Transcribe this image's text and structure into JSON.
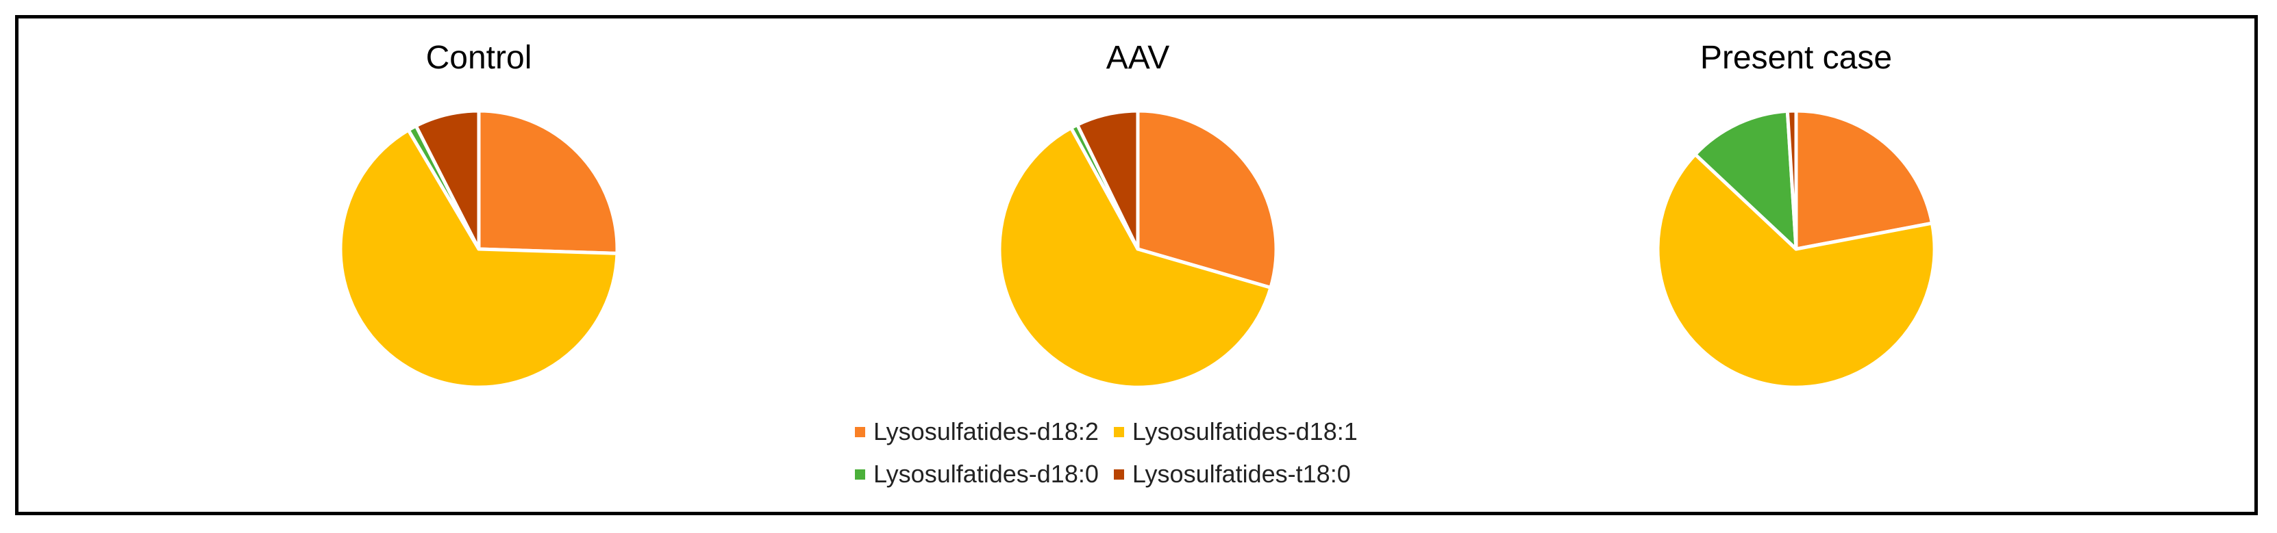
{
  "colors": {
    "d18_2": "#F98025",
    "d18_1": "#FFC000",
    "d18_0": "#4BB03A",
    "t18_0": "#B84300"
  },
  "chart_data": [
    {
      "type": "pie",
      "title": "Control",
      "slices": [
        {
          "label": "Lysosulfatides-d18:2",
          "value": 25.5
        },
        {
          "label": "Lysosulfatides-d18:1",
          "value": 66.0
        },
        {
          "label": "Lysosulfatides-d18:0",
          "value": 1.0
        },
        {
          "label": "Lysosulfatides-t18:0",
          "value": 7.5
        }
      ]
    },
    {
      "type": "pie",
      "title": "AAV",
      "slices": [
        {
          "label": "Lysosulfatides-d18:2",
          "value": 29.5
        },
        {
          "label": "Lysosulfatides-d18:1",
          "value": 62.5
        },
        {
          "label": "Lysosulfatides-d18:0",
          "value": 0.8
        },
        {
          "label": "Lysosulfatides-t18:0",
          "value": 7.2
        }
      ]
    },
    {
      "type": "pie",
      "title": "Present case",
      "slices": [
        {
          "label": "Lysosulfatides-d18:2",
          "value": 22.0
        },
        {
          "label": "Lysosulfatides-d18:1",
          "value": 65.0
        },
        {
          "label": "Lysosulfatides-d18:0",
          "value": 12.0
        },
        {
          "label": "Lysosulfatides-t18:0",
          "value": 1.0
        }
      ]
    }
  ],
  "legend": {
    "placement": "bottom-center",
    "items": [
      {
        "label": "Lysosulfatides-d18:2",
        "color": "#F98025"
      },
      {
        "label": "Lysosulfatides-d18:1",
        "color": "#FFC000"
      },
      {
        "label": "Lysosulfatides-d18:0",
        "color": "#4BB03A"
      },
      {
        "label": "Lysosulfatides-t18:0",
        "color": "#B84300"
      }
    ]
  }
}
